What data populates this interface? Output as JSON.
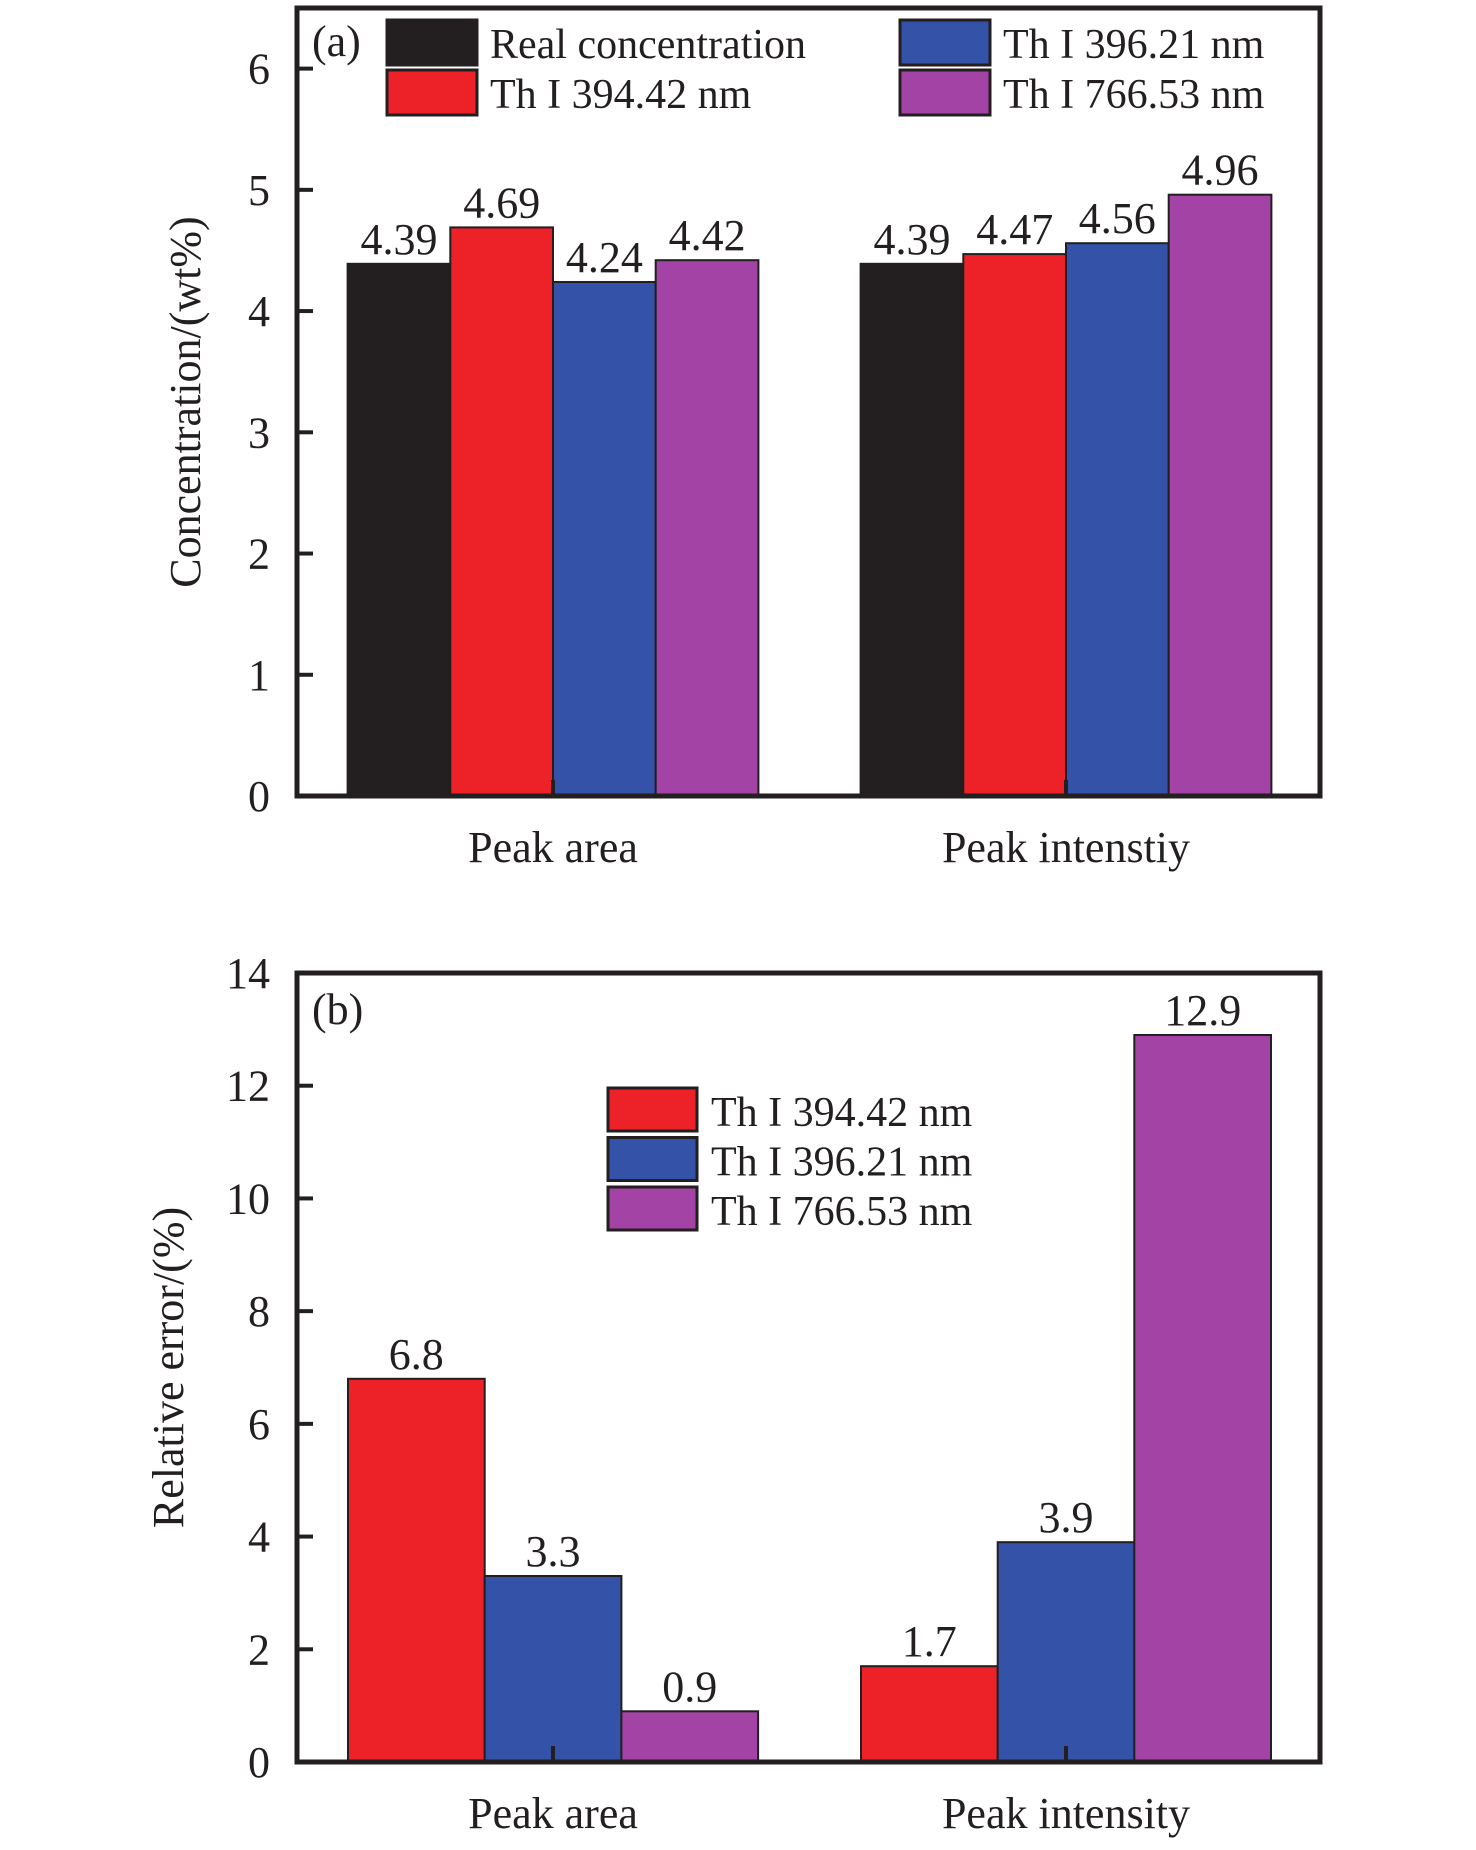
{
  "chart_data": [
    {
      "type": "bar",
      "panel": "(a)",
      "title": "",
      "xlabel": "",
      "ylabel": "Concentration/(wt%)",
      "ylim": [
        0,
        6.5
      ],
      "yticks": [
        0,
        1,
        2,
        3,
        4,
        5,
        6
      ],
      "categories": [
        "Peak area",
        "Peak intenstiy"
      ],
      "series": [
        {
          "name": "Real concentration",
          "color": "#231f20",
          "values": [
            4.39,
            4.39
          ]
        },
        {
          "name": "Th I 394.42 nm",
          "color": "#ed2229",
          "values": [
            4.69,
            4.47
          ]
        },
        {
          "name": "Th I 396.21 nm",
          "color": "#3352a8",
          "values": [
            4.24,
            4.56
          ]
        },
        {
          "name": "Th I 766.53 nm",
          "color": "#a243a5",
          "values": [
            4.42,
            4.96
          ]
        }
      ],
      "data_labels": [
        [
          "4.39",
          "4.69",
          "4.24",
          "4.42"
        ],
        [
          "4.39",
          "4.47",
          "4.56",
          "4.96"
        ]
      ],
      "legend": {
        "placement": "top",
        "columns": 2,
        "order": [
          "Real concentration",
          "Th I 394.42 nm",
          "Th I 396.21 nm",
          "Th I 766.53 nm"
        ]
      },
      "grid": false
    },
    {
      "type": "bar",
      "panel": "(b)",
      "title": "",
      "xlabel": "",
      "ylabel": "Relative error/(%)",
      "ylim": [
        0,
        14
      ],
      "yticks": [
        0,
        2,
        4,
        6,
        8,
        10,
        12,
        14
      ],
      "categories": [
        "Peak area",
        "Peak intensity"
      ],
      "series": [
        {
          "name": "Th I 394.42 nm",
          "color": "#ed2229",
          "values": [
            6.8,
            1.7
          ]
        },
        {
          "name": "Th I 396.21 nm",
          "color": "#3352a8",
          "values": [
            3.3,
            3.9
          ]
        },
        {
          "name": "Th I 766.53 nm",
          "color": "#a243a5",
          "values": [
            0.9,
            12.9
          ]
        }
      ],
      "data_labels": [
        [
          "6.8",
          "3.3",
          "0.9"
        ],
        [
          "1.7",
          "3.9",
          "12.9"
        ]
      ],
      "legend": {
        "placement": "upper-center",
        "columns": 1,
        "order": [
          "Th I 394.42 nm",
          "Th I 396.21 nm",
          "Th I 766.53 nm"
        ]
      },
      "grid": false
    }
  ]
}
